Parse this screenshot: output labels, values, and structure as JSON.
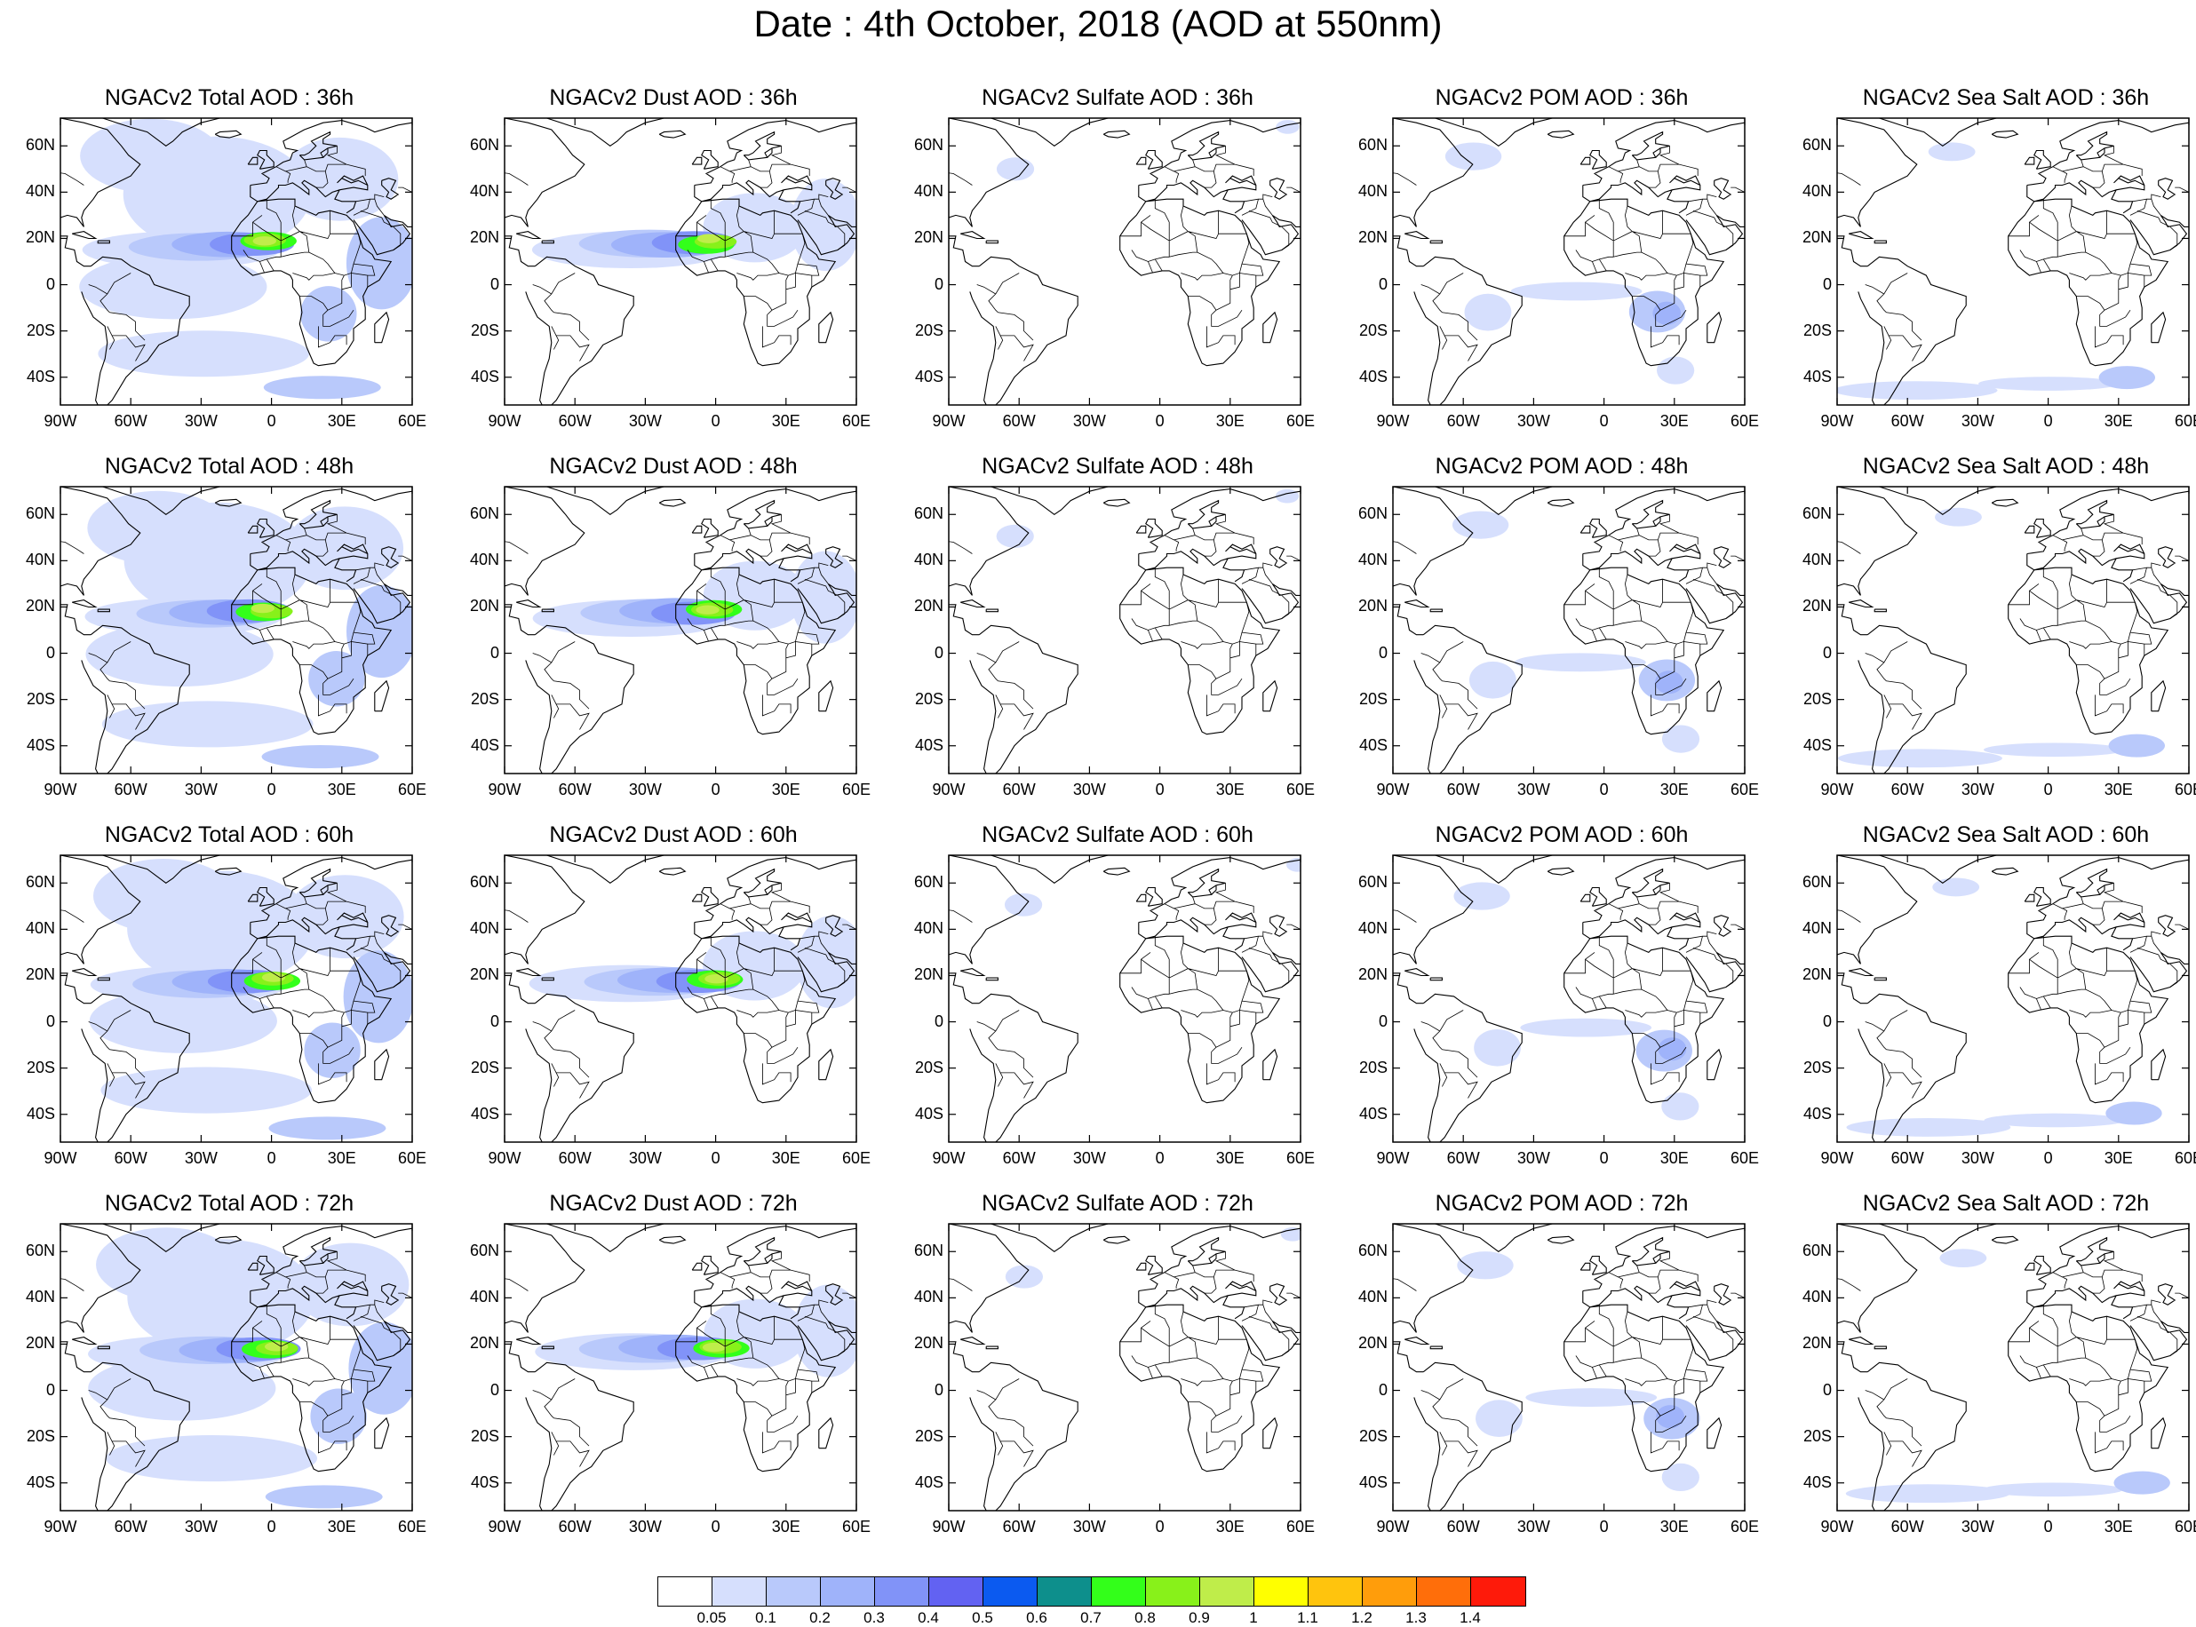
{
  "title": "Date : 4th October, 2018 (AOD at 550nm)",
  "lat_labels": [
    "60N",
    "40N",
    "20N",
    "0",
    "20S",
    "40S"
  ],
  "lon_labels": [
    "90W",
    "60W",
    "30W",
    "0",
    "30E",
    "60E"
  ],
  "panel_titles": [
    [
      "NGACv2 Total AOD : 36h",
      "NGACv2 Dust AOD : 36h",
      "NGACv2 Sulfate AOD : 36h",
      "NGACv2 POM AOD : 36h",
      "NGACv2 Sea Salt AOD : 36h"
    ],
    [
      "NGACv2 Total AOD : 48h",
      "NGACv2 Dust AOD : 48h",
      "NGACv2 Sulfate AOD : 48h",
      "NGACv2 POM AOD : 48h",
      "NGACv2 Sea Salt AOD : 48h"
    ],
    [
      "NGACv2 Total AOD : 60h",
      "NGACv2 Dust AOD : 60h",
      "NGACv2 Sulfate AOD : 60h",
      "NGACv2 POM AOD : 60h",
      "NGACv2 Sea Salt AOD : 60h"
    ],
    [
      "NGACv2 Total AOD : 72h",
      "NGACv2 Dust AOD : 72h",
      "NGACv2 Sulfate AOD : 72h",
      "NGACv2 POM AOD : 72h",
      "NGACv2 Sea Salt  AOD : 72h"
    ]
  ],
  "colorbar": {
    "labels": [
      "0.05",
      "0.1",
      "0.2",
      "0.3",
      "0.4",
      "0.5",
      "0.6",
      "0.7",
      "0.8",
      "0.9",
      "1",
      "1.1",
      "1.2",
      "1.3",
      "1.4"
    ],
    "colors": [
      "#ffffff",
      "#d6dffd",
      "#b9c9fb",
      "#9fb3fa",
      "#8193f8",
      "#6262f2",
      "#0b5af0",
      "#0d8f8c",
      "#33ff1a",
      "#88f11a",
      "#bfed4a",
      "#ffff00",
      "#ffc40d",
      "#ff9d0b",
      "#ff6e0a",
      "#fe1a0a"
    ]
  }
}
